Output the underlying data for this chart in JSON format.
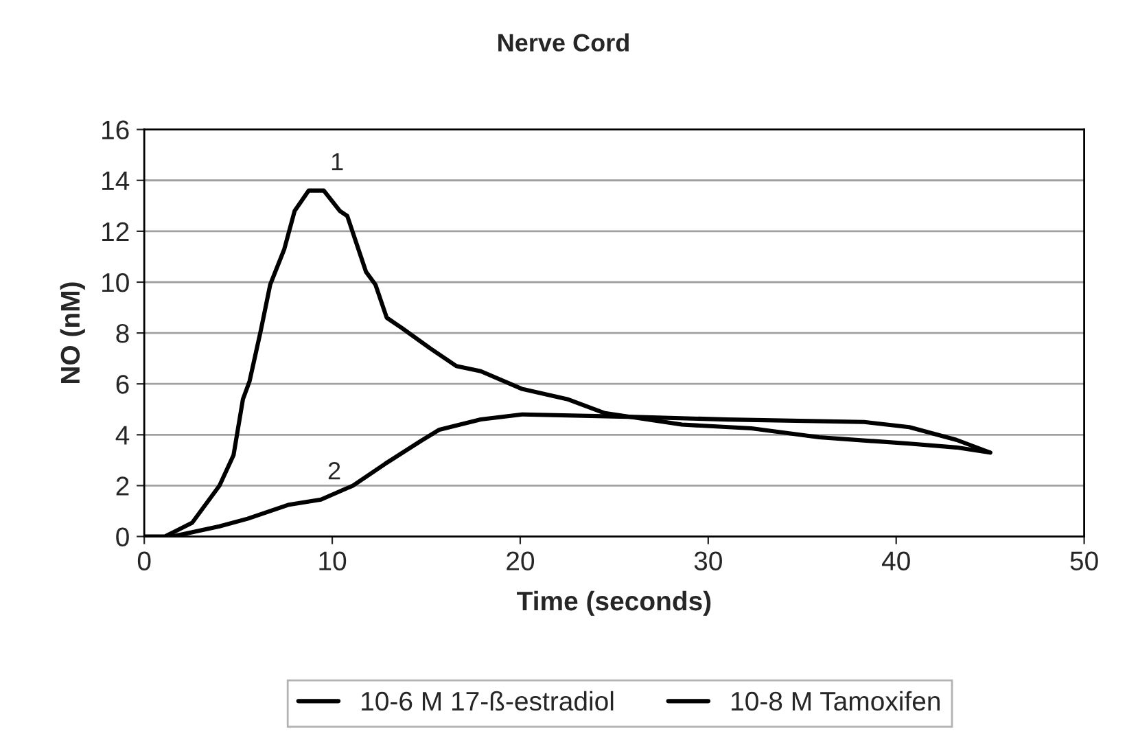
{
  "chart_data": {
    "type": "line",
    "title": "Nerve Cord",
    "xlabel": "Time (seconds)",
    "ylabel": "NO (nM)",
    "xlim": [
      0,
      50
    ],
    "xticks": [
      0,
      10,
      20,
      30,
      40,
      50
    ],
    "ylim": [
      0,
      16
    ],
    "yticks": [
      0,
      2,
      4,
      6,
      8,
      10,
      12,
      14,
      16
    ],
    "grid": "y",
    "legend": "bottom",
    "marker": "none",
    "line_style": "solid",
    "annotations": [
      "1",
      "2"
    ],
    "series": [
      {
        "name": "10-6 M 17-ß-estradiol",
        "color": "#000000",
        "x": [
          0,
          1.1,
          2.55,
          4.0,
          4.75,
          5.25,
          5.6,
          6.2,
          6.7,
          7.45,
          8.0,
          8.75,
          9.55,
          10.4,
          10.8,
          11.3,
          11.8,
          12.3,
          12.9,
          13.7,
          15.2,
          16.6,
          17.9,
          20.1,
          22.5,
          24.5,
          28.6,
          32.3,
          35.9,
          40.7,
          43.2,
          45.0
        ],
        "values": [
          0,
          0,
          0.54,
          2.0,
          3.2,
          5.4,
          6.1,
          8.1,
          9.9,
          11.3,
          12.8,
          13.6,
          13.6,
          12.8,
          12.6,
          11.5,
          10.4,
          9.9,
          8.6,
          8.2,
          7.4,
          6.7,
          6.5,
          5.8,
          5.4,
          4.85,
          4.4,
          4.25,
          3.9,
          3.65,
          3.5,
          3.3
        ]
      },
      {
        "name": "10-8 M Tamoxifen",
        "color": "#000000",
        "x": [
          1.5,
          4.0,
          5.5,
          7.7,
          9.4,
          11.1,
          12.8,
          14.7,
          15.7,
          17.9,
          20.1,
          26.1,
          31.0,
          38.3,
          40.7,
          43.2,
          45.0
        ],
        "values": [
          0,
          0.4,
          0.7,
          1.25,
          1.45,
          2.0,
          2.85,
          3.75,
          4.2,
          4.6,
          4.8,
          4.7,
          4.6,
          4.5,
          4.3,
          3.8,
          3.3
        ]
      }
    ]
  }
}
